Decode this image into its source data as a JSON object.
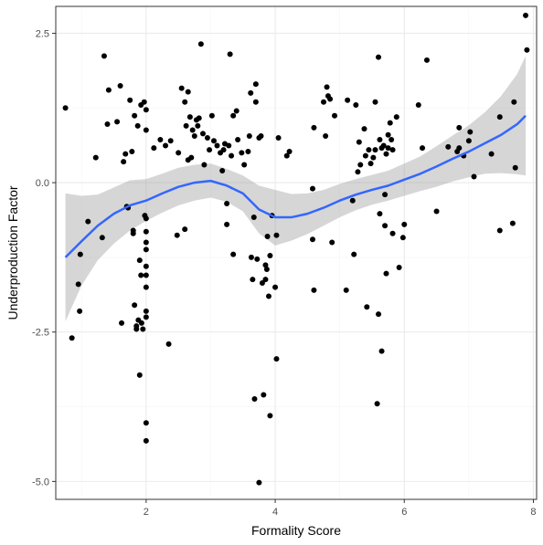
{
  "chart_data": {
    "type": "scatter",
    "title": "",
    "xlabel": "Formality Score",
    "ylabel": "Underproduction Factor",
    "xlim": [
      0.6,
      8.05
    ],
    "ylim": [
      -5.3,
      2.95
    ],
    "x_ticks": [
      2,
      4,
      6,
      8
    ],
    "x_tick_labels": [
      "2",
      "4",
      "6",
      "8"
    ],
    "y_ticks": [
      -5,
      -2.5,
      0,
      2.5
    ],
    "y_tick_labels": [
      "-5.0",
      "-2.5",
      "0.0",
      "2.5"
    ],
    "grid": true,
    "legend": "none",
    "colors": {
      "points": "#000000",
      "smooth_line": "#3366FF",
      "confidence_band": "#999999",
      "panel_border": "#333333",
      "grid_major": "#ebebeb",
      "grid_minor": "#f5f5f5"
    },
    "points": [
      [
        0.75,
        1.25
      ],
      [
        0.85,
        -2.6
      ],
      [
        0.95,
        -1.7
      ],
      [
        0.97,
        -2.15
      ],
      [
        0.98,
        -1.2
      ],
      [
        1.1,
        -0.65
      ],
      [
        1.22,
        0.42
      ],
      [
        1.32,
        -0.92
      ],
      [
        1.35,
        2.12
      ],
      [
        1.4,
        0.98
      ],
      [
        1.42,
        1.55
      ],
      [
        1.55,
        1.02
      ],
      [
        1.6,
        1.62
      ],
      [
        1.62,
        -2.35
      ],
      [
        1.65,
        0.35
      ],
      [
        1.68,
        0.48
      ],
      [
        1.7,
        -0.4
      ],
      [
        1.72,
        -0.42
      ],
      [
        1.75,
        1.38
      ],
      [
        1.78,
        0.52
      ],
      [
        1.8,
        -0.8
      ],
      [
        1.8,
        -0.85
      ],
      [
        1.82,
        1.12
      ],
      [
        1.82,
        -2.05
      ],
      [
        1.85,
        -2.45
      ],
      [
        1.85,
        -2.4
      ],
      [
        1.87,
        0.95
      ],
      [
        1.88,
        -2.3
      ],
      [
        1.9,
        -3.22
      ],
      [
        1.9,
        -1.3
      ],
      [
        1.92,
        1.3
      ],
      [
        1.92,
        -1.55
      ],
      [
        1.93,
        -2.35
      ],
      [
        1.95,
        -2.45
      ],
      [
        1.97,
        1.35
      ],
      [
        1.98,
        -0.55
      ],
      [
        2.0,
        1.22
      ],
      [
        2.0,
        0.88
      ],
      [
        2.0,
        -0.6
      ],
      [
        2.0,
        -0.82
      ],
      [
        2.0,
        -1.0
      ],
      [
        2.0,
        -1.12
      ],
      [
        2.0,
        -1.4
      ],
      [
        2.0,
        -1.55
      ],
      [
        2.0,
        -1.75
      ],
      [
        2.0,
        -2.15
      ],
      [
        2.0,
        -2.25
      ],
      [
        2.0,
        -4.02
      ],
      [
        2.0,
        -4.32
      ],
      [
        2.12,
        0.58
      ],
      [
        2.22,
        0.72
      ],
      [
        2.3,
        0.62
      ],
      [
        2.35,
        -2.7
      ],
      [
        2.38,
        0.7
      ],
      [
        2.48,
        -0.88
      ],
      [
        2.5,
        0.5
      ],
      [
        2.55,
        1.58
      ],
      [
        2.6,
        1.35
      ],
      [
        2.6,
        -0.78
      ],
      [
        2.62,
        0.95
      ],
      [
        2.65,
        1.52
      ],
      [
        2.65,
        0.38
      ],
      [
        2.68,
        1.1
      ],
      [
        2.7,
        0.42
      ],
      [
        2.72,
        0.88
      ],
      [
        2.75,
        0.78
      ],
      [
        2.78,
        1.05
      ],
      [
        2.8,
        0.95
      ],
      [
        2.82,
        1.08
      ],
      [
        2.85,
        2.32
      ],
      [
        2.88,
        0.82
      ],
      [
        2.9,
        0.3
      ],
      [
        2.95,
        0.75
      ],
      [
        2.98,
        0.55
      ],
      [
        3.02,
        1.12
      ],
      [
        3.05,
        0.7
      ],
      [
        3.1,
        0.62
      ],
      [
        3.15,
        0.5
      ],
      [
        3.18,
        0.2
      ],
      [
        3.2,
        0.55
      ],
      [
        3.22,
        0.65
      ],
      [
        3.25,
        -0.35
      ],
      [
        3.25,
        -0.7
      ],
      [
        3.28,
        0.62
      ],
      [
        3.3,
        2.15
      ],
      [
        3.32,
        0.45
      ],
      [
        3.35,
        1.12
      ],
      [
        3.35,
        -1.2
      ],
      [
        3.4,
        1.2
      ],
      [
        3.42,
        0.72
      ],
      [
        3.48,
        0.5
      ],
      [
        3.52,
        0.3
      ],
      [
        3.58,
        0.52
      ],
      [
        3.6,
        0.78
      ],
      [
        3.62,
        1.5
      ],
      [
        3.63,
        -1.25
      ],
      [
        3.65,
        -1.62
      ],
      [
        3.67,
        -0.58
      ],
      [
        3.68,
        -3.62
      ],
      [
        3.7,
        1.65
      ],
      [
        3.7,
        1.35
      ],
      [
        3.72,
        -1.28
      ],
      [
        3.75,
        -5.02
      ],
      [
        3.75,
        0.75
      ],
      [
        3.78,
        0.78
      ],
      [
        3.8,
        -1.68
      ],
      [
        3.82,
        -3.55
      ],
      [
        3.85,
        -1.38
      ],
      [
        3.85,
        -1.62
      ],
      [
        3.87,
        -1.45
      ],
      [
        3.88,
        -0.9
      ],
      [
        3.9,
        -1.9
      ],
      [
        3.92,
        -1.22
      ],
      [
        3.92,
        -3.9
      ],
      [
        3.95,
        -0.55
      ],
      [
        4.0,
        -1.75
      ],
      [
        4.02,
        -2.95
      ],
      [
        4.02,
        -0.88
      ],
      [
        4.05,
        0.75
      ],
      [
        4.18,
        0.45
      ],
      [
        4.22,
        0.52
      ],
      [
        4.58,
        -0.1
      ],
      [
        4.58,
        -0.95
      ],
      [
        4.6,
        -1.8
      ],
      [
        4.6,
        0.92
      ],
      [
        4.75,
        1.35
      ],
      [
        4.78,
        0.78
      ],
      [
        4.8,
        1.6
      ],
      [
        4.82,
        1.45
      ],
      [
        4.85,
        1.4
      ],
      [
        4.88,
        -1.0
      ],
      [
        4.92,
        1.12
      ],
      [
        5.1,
        -1.8
      ],
      [
        5.12,
        1.38
      ],
      [
        5.2,
        -0.3
      ],
      [
        5.22,
        -1.2
      ],
      [
        5.25,
        1.3
      ],
      [
        5.28,
        0.18
      ],
      [
        5.3,
        0.68
      ],
      [
        5.32,
        0.3
      ],
      [
        5.38,
        0.9
      ],
      [
        5.4,
        0.45
      ],
      [
        5.42,
        -2.08
      ],
      [
        5.45,
        0.55
      ],
      [
        5.48,
        0.32
      ],
      [
        5.52,
        0.42
      ],
      [
        5.55,
        0.55
      ],
      [
        5.55,
        1.35
      ],
      [
        5.58,
        -3.7
      ],
      [
        5.6,
        2.1
      ],
      [
        5.6,
        -2.2
      ],
      [
        5.62,
        0.72
      ],
      [
        5.62,
        -0.52
      ],
      [
        5.65,
        -2.82
      ],
      [
        5.65,
        0.58
      ],
      [
        5.68,
        0.62
      ],
      [
        5.7,
        -0.72
      ],
      [
        5.7,
        -0.2
      ],
      [
        5.72,
        0.48
      ],
      [
        5.72,
        -1.52
      ],
      [
        5.75,
        0.8
      ],
      [
        5.75,
        0.58
      ],
      [
        5.78,
        1.0
      ],
      [
        5.8,
        0.72
      ],
      [
        5.82,
        0.55
      ],
      [
        5.82,
        -0.85
      ],
      [
        5.88,
        1.1
      ],
      [
        5.92,
        -1.42
      ],
      [
        5.98,
        -0.92
      ],
      [
        6.0,
        -0.7
      ],
      [
        6.22,
        1.3
      ],
      [
        6.28,
        0.58
      ],
      [
        6.35,
        2.05
      ],
      [
        6.5,
        -0.48
      ],
      [
        6.68,
        0.6
      ],
      [
        6.82,
        0.52
      ],
      [
        6.85,
        0.58
      ],
      [
        6.85,
        0.92
      ],
      [
        6.92,
        0.45
      ],
      [
        7.0,
        0.7
      ],
      [
        7.02,
        0.85
      ],
      [
        7.08,
        0.1
      ],
      [
        7.35,
        0.48
      ],
      [
        7.48,
        1.1
      ],
      [
        7.48,
        -0.8
      ],
      [
        7.68,
        -0.68
      ],
      [
        7.7,
        1.35
      ],
      [
        7.72,
        0.25
      ],
      [
        7.88,
        2.8
      ],
      [
        7.9,
        2.22
      ]
    ],
    "smooth": {
      "x": [
        0.75,
        1.0,
        1.25,
        1.5,
        1.75,
        2.0,
        2.25,
        2.5,
        2.75,
        3.0,
        3.25,
        3.5,
        3.75,
        4.0,
        4.25,
        4.5,
        4.75,
        5.0,
        5.25,
        5.5,
        5.75,
        6.0,
        6.25,
        6.5,
        6.75,
        7.0,
        7.25,
        7.5,
        7.75,
        7.88
      ],
      "y": [
        -1.25,
        -0.98,
        -0.72,
        -0.52,
        -0.38,
        -0.3,
        -0.18,
        -0.07,
        0.0,
        0.03,
        -0.05,
        -0.18,
        -0.45,
        -0.58,
        -0.58,
        -0.52,
        -0.42,
        -0.3,
        -0.2,
        -0.12,
        -0.05,
        0.05,
        0.15,
        0.27,
        0.4,
        0.52,
        0.66,
        0.8,
        0.98,
        1.12
      ],
      "lower": [
        -2.32,
        -1.72,
        -1.3,
        -1.02,
        -0.8,
        -0.64,
        -0.5,
        -0.38,
        -0.3,
        -0.25,
        -0.32,
        -0.48,
        -0.85,
        -1.05,
        -0.97,
        -0.86,
        -0.72,
        -0.58,
        -0.46,
        -0.37,
        -0.3,
        -0.22,
        -0.14,
        -0.07,
        0.02,
        0.09,
        0.15,
        0.16,
        0.14,
        0.12
      ],
      "upper": [
        -0.18,
        -0.22,
        -0.2,
        -0.08,
        0.04,
        0.06,
        0.15,
        0.25,
        0.3,
        0.32,
        0.23,
        0.12,
        -0.05,
        -0.12,
        -0.19,
        -0.18,
        -0.12,
        -0.02,
        0.06,
        0.13,
        0.2,
        0.32,
        0.44,
        0.61,
        0.79,
        0.96,
        1.18,
        1.45,
        1.82,
        2.12
      ]
    }
  }
}
